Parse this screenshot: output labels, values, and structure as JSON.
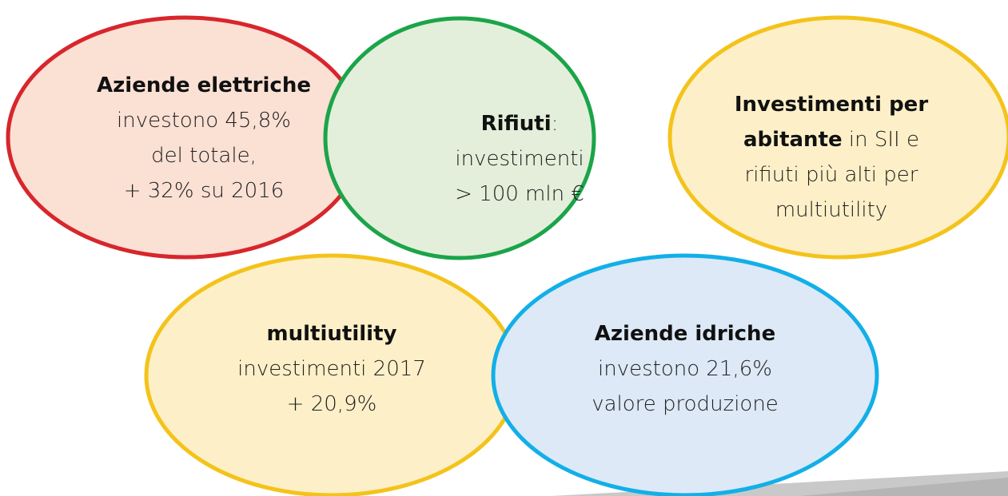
{
  "nodes": [
    {
      "lines": [
        [
          {
            "text": "Aziende elettriche",
            "bold": true
          }
        ],
        [
          {
            "text": "investono 45,8%"
          }
        ],
        [
          {
            "text": "del totale,"
          }
        ],
        [
          {
            "text": "+ 32% su 2016"
          }
        ]
      ]
    },
    {
      "lines": [
        [
          {
            "text": "Investimenti per",
            "bold": true
          }
        ],
        [
          {
            "text": "abitante",
            "bold": true
          },
          {
            "text": " in SII e"
          }
        ],
        [
          {
            "text": "rifiuti più alti per"
          }
        ],
        [
          {
            "text": "multiutility"
          }
        ]
      ]
    },
    {
      "lines": [
        [
          {
            "text": "Rifiuti",
            "bold": true
          },
          {
            "text": ":"
          }
        ],
        [
          {
            "text": "investimenti"
          }
        ],
        [
          {
            "text": "> 100 mln €"
          }
        ]
      ]
    },
    {
      "lines": [
        [
          {
            "text": "multiutility",
            "bold": true
          }
        ],
        [
          {
            "text": "investimenti 2017"
          }
        ],
        [
          {
            "text": "+ 20,9%"
          }
        ]
      ]
    },
    {
      "lines": [
        [
          {
            "text": "Aziende idriche",
            "bold": true
          }
        ],
        [
          {
            "text": "investono 21,6%"
          }
        ],
        [
          {
            "text": "valore produzione"
          }
        ]
      ]
    }
  ]
}
